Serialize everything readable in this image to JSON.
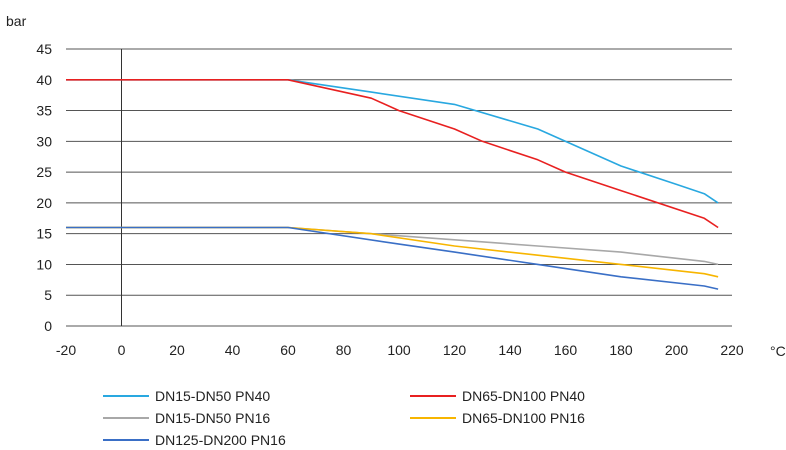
{
  "chart_data": {
    "type": "line",
    "ylabel": "bar",
    "xlabel": "°C",
    "xlim": [
      -20,
      220
    ],
    "ylim": [
      0,
      45
    ],
    "x_ticks": [
      -20,
      0,
      20,
      40,
      60,
      80,
      100,
      120,
      140,
      160,
      180,
      200,
      220
    ],
    "y_ticks": [
      0,
      5,
      10,
      15,
      20,
      25,
      30,
      35,
      40,
      45
    ],
    "grid": "horizontal",
    "legend_position": "bottom",
    "series": [
      {
        "name": "DN15-DN50 PN40",
        "color": "#29a8e0",
        "points": [
          [
            -20,
            40
          ],
          [
            60,
            40
          ],
          [
            90,
            38
          ],
          [
            120,
            36
          ],
          [
            150,
            32
          ],
          [
            180,
            26
          ],
          [
            200,
            23
          ],
          [
            210,
            21.5
          ],
          [
            215,
            20
          ]
        ]
      },
      {
        "name": "DN65-DN100 PN40",
        "color": "#e82020",
        "points": [
          [
            -20,
            40
          ],
          [
            60,
            40
          ],
          [
            90,
            37
          ],
          [
            100,
            35
          ],
          [
            120,
            32
          ],
          [
            130,
            30
          ],
          [
            150,
            27
          ],
          [
            160,
            25
          ],
          [
            180,
            22
          ],
          [
            210,
            17.5
          ],
          [
            215,
            16
          ]
        ]
      },
      {
        "name": "DN15-DN50 PN16",
        "color": "#a8a8a8",
        "points": [
          [
            -20,
            16
          ],
          [
            60,
            16
          ],
          [
            90,
            15
          ],
          [
            120,
            14
          ],
          [
            150,
            13
          ],
          [
            180,
            12
          ],
          [
            210,
            10.5
          ],
          [
            215,
            10
          ]
        ]
      },
      {
        "name": "DN65-DN100 PN16",
        "color": "#f7b500",
        "points": [
          [
            -20,
            16
          ],
          [
            60,
            16
          ],
          [
            90,
            15
          ],
          [
            120,
            13
          ],
          [
            150,
            11.5
          ],
          [
            180,
            10
          ],
          [
            210,
            8.5
          ],
          [
            215,
            8
          ]
        ]
      },
      {
        "name": "DN125-DN200 PN16",
        "color": "#3a6fc6",
        "points": [
          [
            -20,
            16
          ],
          [
            60,
            16
          ],
          [
            100,
            13.3
          ],
          [
            120,
            12
          ],
          [
            150,
            10
          ],
          [
            180,
            8
          ],
          [
            210,
            6.5
          ],
          [
            215,
            6
          ]
        ]
      }
    ]
  }
}
